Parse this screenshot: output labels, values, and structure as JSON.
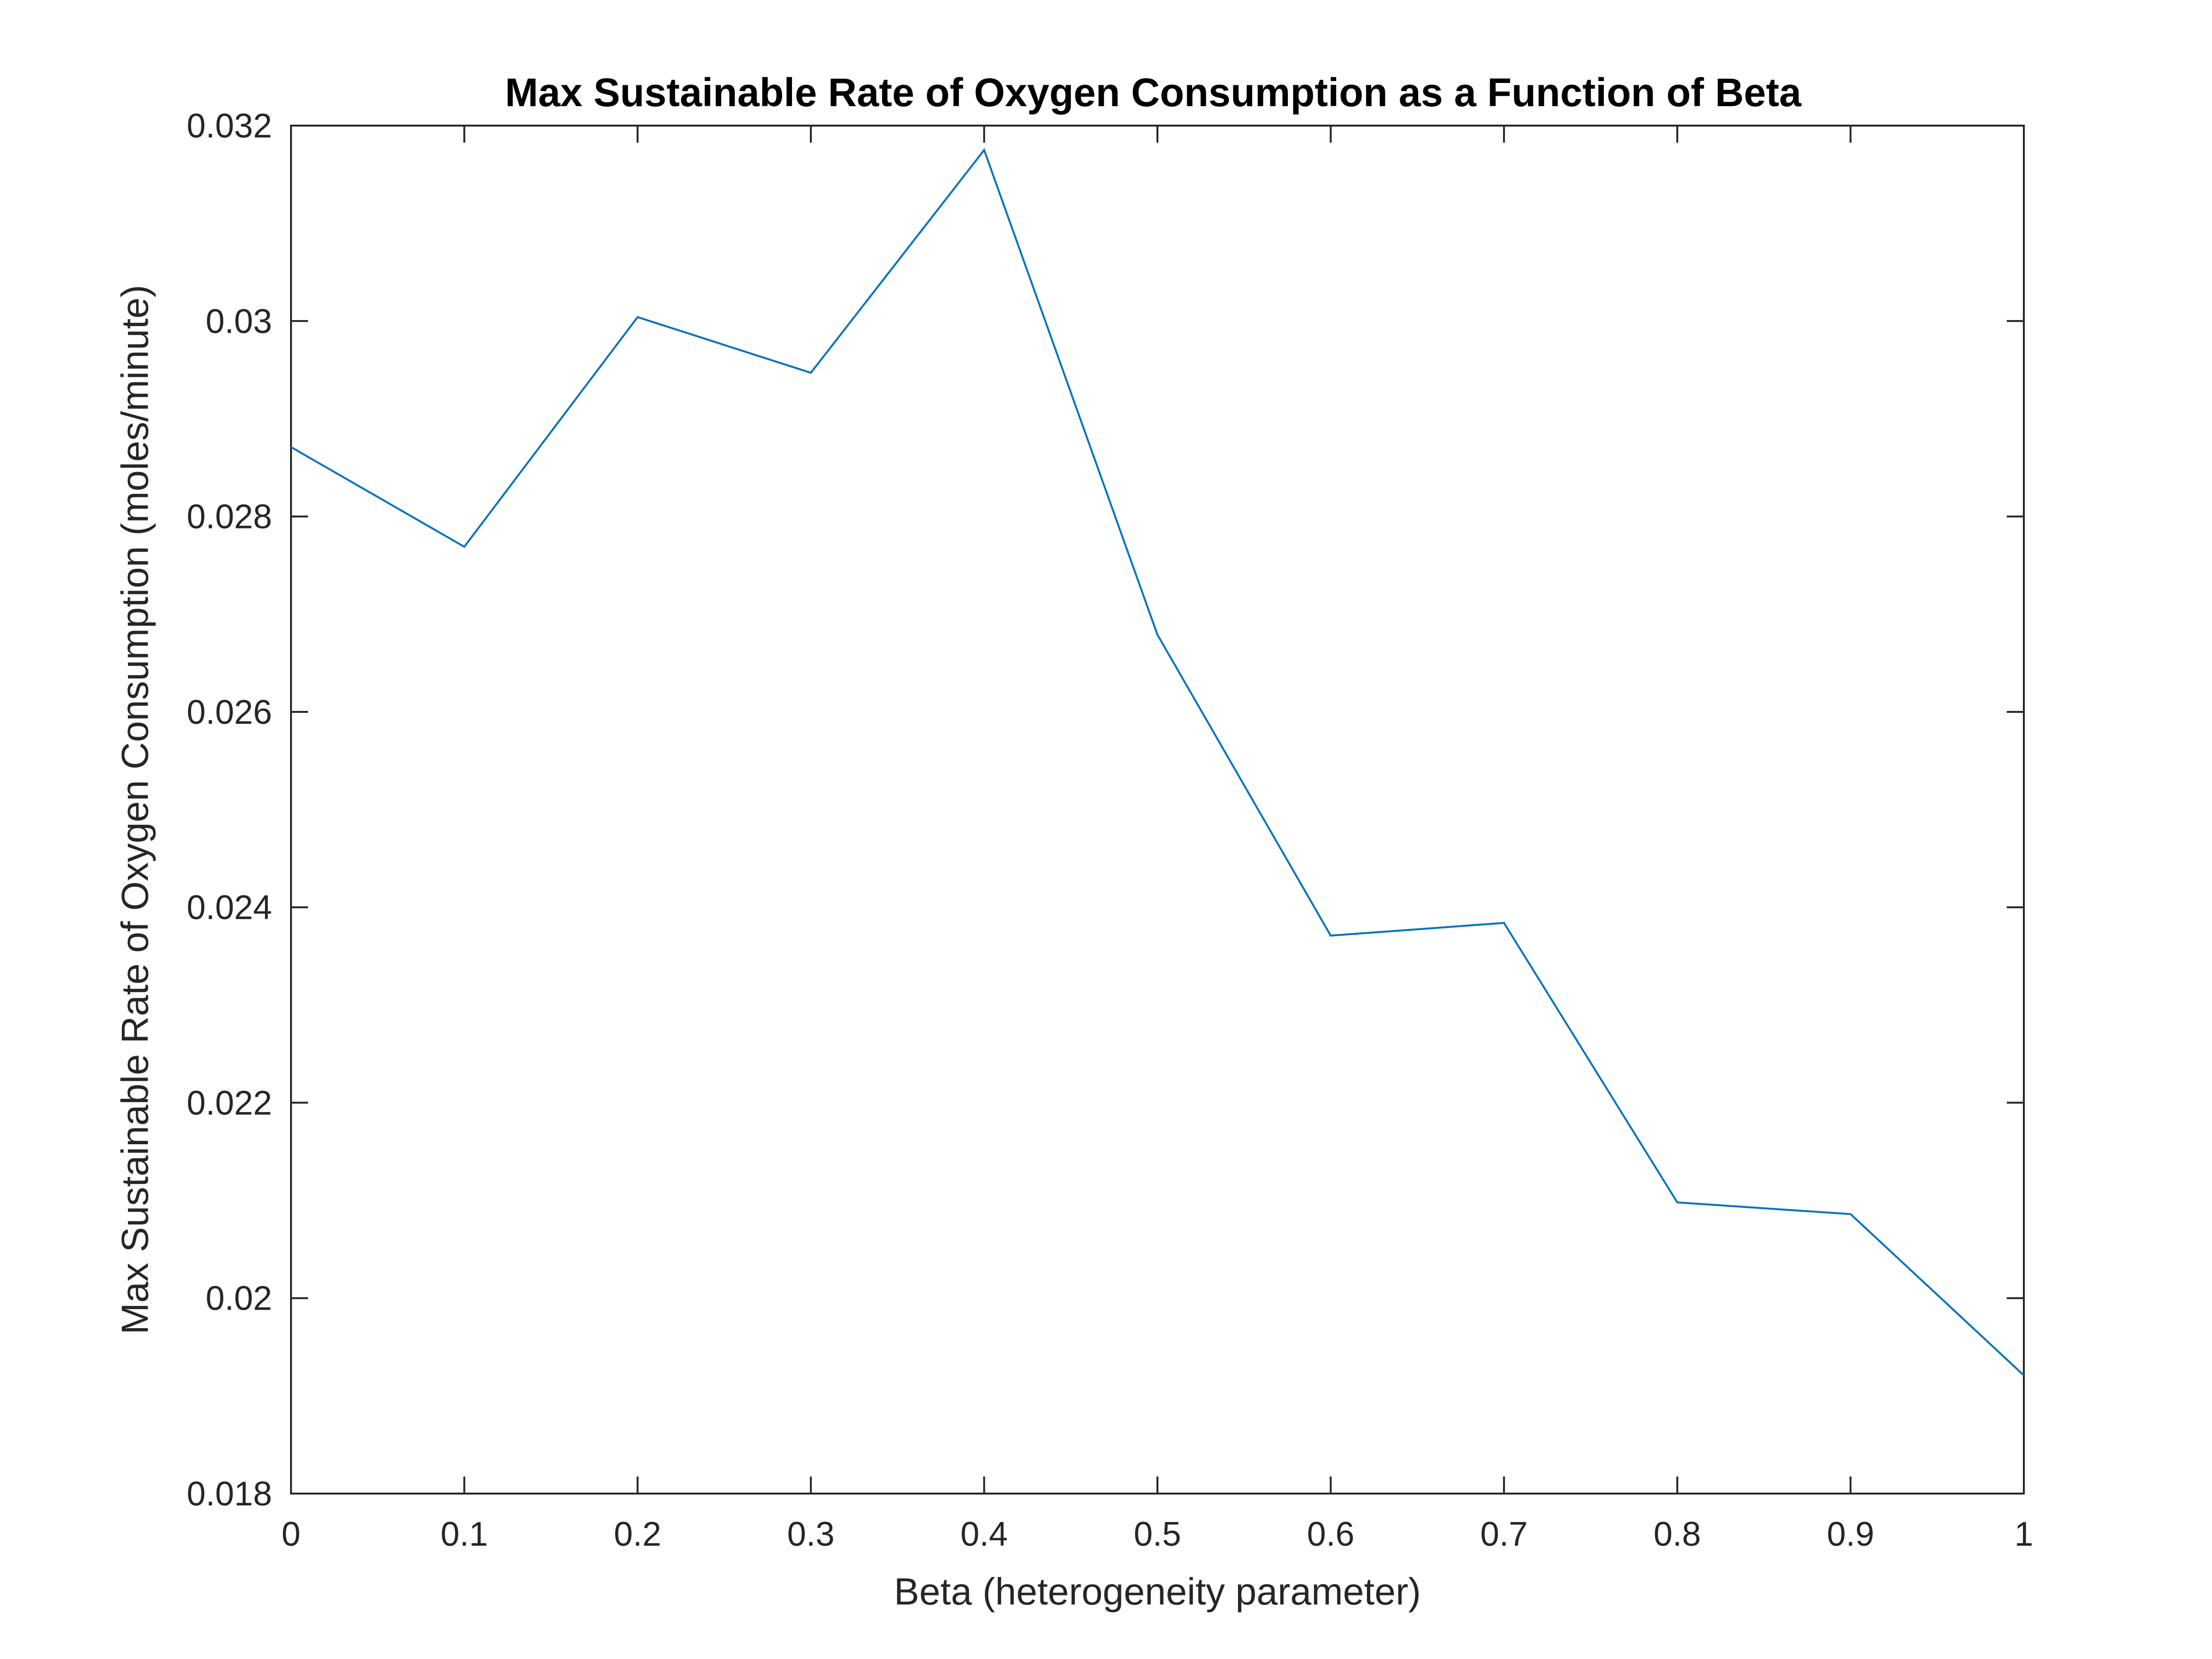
{
  "chart_data": {
    "type": "line",
    "title": "Max Sustainable Rate of Oxygen Consumption as a Function of Beta",
    "xlabel": "Beta (heterogeneity parameter)",
    "ylabel": "Max Sustainable Rate of Oxygen Consumption (moles/minute)",
    "xlim": [
      0,
      1
    ],
    "ylim": [
      0.018,
      0.032
    ],
    "xticks": [
      0,
      0.1,
      0.2,
      0.3,
      0.4,
      0.5,
      0.6,
      0.7,
      0.8,
      0.9,
      1
    ],
    "xtick_labels": [
      "0",
      "0.1",
      "0.2",
      "0.3",
      "0.4",
      "0.5",
      "0.6",
      "0.7",
      "0.8",
      "0.9",
      "1"
    ],
    "yticks": [
      0.018,
      0.02,
      0.022,
      0.024,
      0.026,
      0.028,
      0.03,
      0.032
    ],
    "ytick_labels": [
      "0.018",
      "0.02",
      "0.022",
      "0.024",
      "0.026",
      "0.028",
      "0.03",
      "0.032"
    ],
    "grid": false,
    "legend": "none",
    "series": [
      {
        "color": "#0072BD",
        "x": [
          0,
          0.1,
          0.2,
          0.3,
          0.4,
          0.5,
          0.6,
          0.7,
          0.8,
          0.9,
          1
        ],
        "y": [
          0.02871,
          0.02769,
          0.03004,
          0.02947,
          0.03175,
          0.02679,
          0.02371,
          0.02384,
          0.02098,
          0.02086,
          0.01921
        ]
      }
    ]
  }
}
